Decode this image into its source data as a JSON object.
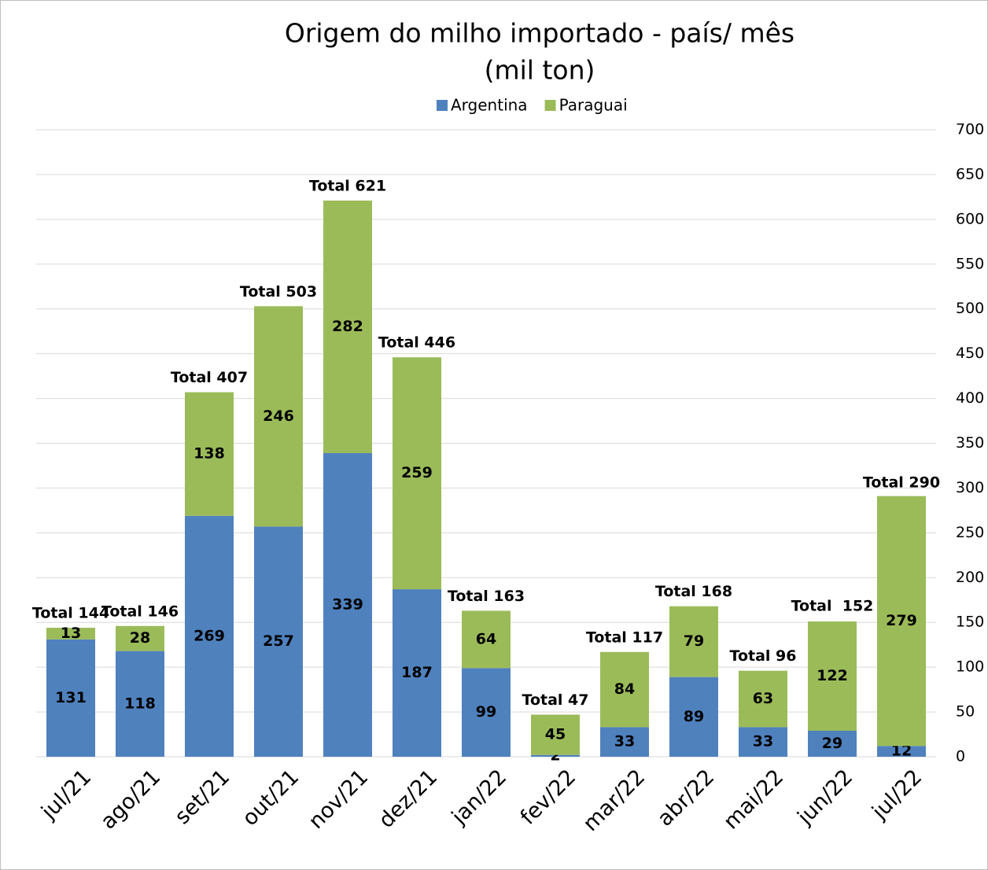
{
  "chart_data": {
    "type": "stacked-bar",
    "title": [
      "Origem do milho importado - país/ mês",
      "(mil ton)"
    ],
    "categories": [
      "jul/21",
      "ago/21",
      "set/21",
      "out/21",
      "nov/21",
      "dez/21",
      "jan/22",
      "fev/22",
      "mar/22",
      "abr/22",
      "mai/22",
      "jun/22",
      "jul/22"
    ],
    "series": [
      {
        "name": "Argentina",
        "color": "#4f81bd",
        "values": [
          131,
          118,
          269,
          257,
          339,
          187,
          99,
          2,
          33,
          89,
          33,
          29,
          12
        ]
      },
      {
        "name": "Paraguai",
        "color": "#9bbb59",
        "values": [
          13,
          28,
          138,
          246,
          282,
          259,
          64,
          45,
          84,
          79,
          63,
          122,
          279
        ]
      }
    ],
    "totals": {
      "values": [
        144,
        146,
        407,
        503,
        621,
        446,
        163,
        47,
        117,
        168,
        96,
        152,
        290
      ],
      "value_labels": [
        "Total 144",
        "Total 146",
        "Total 407",
        "Total 503",
        "Total 621",
        "Total 446",
        "Total 163",
        "Total 47",
        "Total 117",
        "Total 168",
        "Total 96",
        "Total  152",
        "Total 290"
      ]
    },
    "ylim": [
      0,
      700
    ],
    "yticks": [
      0,
      50,
      100,
      150,
      200,
      250,
      300,
      350,
      400,
      450,
      500,
      550,
      600,
      650,
      700
    ],
    "y_axis_side": "right",
    "grid": true,
    "legend": "top"
  }
}
